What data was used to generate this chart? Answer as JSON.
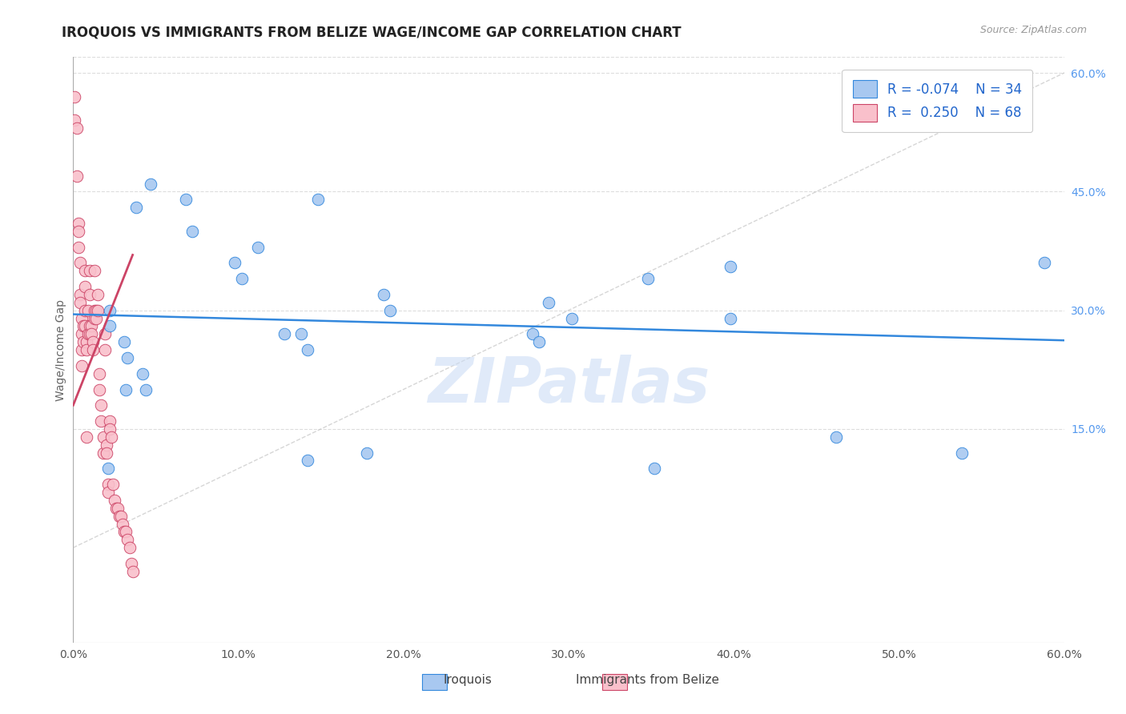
{
  "title": "IROQUOIS VS IMMIGRANTS FROM BELIZE WAGE/INCOME GAP CORRELATION CHART",
  "source": "Source: ZipAtlas.com",
  "ylabel": "Wage/Income Gap",
  "xmin": 0.0,
  "xmax": 0.6,
  "ymin": -0.12,
  "ymax": 0.62,
  "xticks": [
    0.0,
    0.1,
    0.2,
    0.3,
    0.4,
    0.5,
    0.6
  ],
  "xtick_labels": [
    "0.0%",
    "10.0%",
    "20.0%",
    "30.0%",
    "40.0%",
    "50.0%",
    "60.0%"
  ],
  "yticks": [
    0.15,
    0.3,
    0.45,
    0.6
  ],
  "ytick_labels": [
    "15.0%",
    "30.0%",
    "45.0%",
    "60.0%"
  ],
  "blue_color": "#A8C8F0",
  "pink_color": "#F9C0CB",
  "trend_blue_color": "#3388DD",
  "trend_pink_color": "#CC4466",
  "diagonal_color": "#BBBBBB",
  "watermark": "ZIPatlas",
  "blue_x": [
    0.047,
    0.022,
    0.038,
    0.068,
    0.072,
    0.098,
    0.102,
    0.112,
    0.128,
    0.138,
    0.142,
    0.148,
    0.022,
    0.031,
    0.033,
    0.042,
    0.044,
    0.188,
    0.192,
    0.278,
    0.282,
    0.288,
    0.302,
    0.348,
    0.398,
    0.462,
    0.538,
    0.588,
    0.021,
    0.032,
    0.142,
    0.178,
    0.352,
    0.398
  ],
  "blue_y": [
    0.46,
    0.3,
    0.43,
    0.44,
    0.4,
    0.36,
    0.34,
    0.38,
    0.27,
    0.27,
    0.25,
    0.44,
    0.28,
    0.26,
    0.24,
    0.22,
    0.2,
    0.32,
    0.3,
    0.27,
    0.26,
    0.31,
    0.29,
    0.34,
    0.29,
    0.14,
    0.12,
    0.36,
    0.1,
    0.2,
    0.11,
    0.12,
    0.1,
    0.355
  ],
  "pink_x": [
    0.001,
    0.001,
    0.002,
    0.002,
    0.003,
    0.003,
    0.003,
    0.004,
    0.004,
    0.004,
    0.005,
    0.005,
    0.005,
    0.005,
    0.006,
    0.006,
    0.007,
    0.007,
    0.007,
    0.007,
    0.008,
    0.008,
    0.008,
    0.009,
    0.009,
    0.01,
    0.01,
    0.01,
    0.01,
    0.011,
    0.011,
    0.012,
    0.012,
    0.013,
    0.013,
    0.013,
    0.014,
    0.014,
    0.015,
    0.015,
    0.016,
    0.016,
    0.017,
    0.017,
    0.018,
    0.018,
    0.019,
    0.019,
    0.02,
    0.02,
    0.021,
    0.021,
    0.022,
    0.022,
    0.023,
    0.024,
    0.025,
    0.026,
    0.027,
    0.028,
    0.029,
    0.03,
    0.031,
    0.032,
    0.033,
    0.034,
    0.035,
    0.036
  ],
  "pink_y": [
    0.57,
    0.54,
    0.53,
    0.47,
    0.41,
    0.4,
    0.38,
    0.36,
    0.32,
    0.31,
    0.29,
    0.27,
    0.25,
    0.23,
    0.28,
    0.26,
    0.35,
    0.33,
    0.3,
    0.28,
    0.26,
    0.25,
    0.14,
    0.3,
    0.27,
    0.35,
    0.32,
    0.28,
    0.27,
    0.28,
    0.27,
    0.26,
    0.25,
    0.35,
    0.3,
    0.29,
    0.3,
    0.29,
    0.32,
    0.3,
    0.22,
    0.2,
    0.18,
    0.16,
    0.14,
    0.12,
    0.27,
    0.25,
    0.13,
    0.12,
    0.08,
    0.07,
    0.16,
    0.15,
    0.14,
    0.08,
    0.06,
    0.05,
    0.05,
    0.04,
    0.04,
    0.03,
    0.02,
    0.02,
    0.01,
    0.0,
    -0.02,
    -0.03
  ],
  "blue_trend_x": [
    0.0,
    0.6
  ],
  "blue_trend_y": [
    0.295,
    0.262
  ],
  "pink_trend_x": [
    0.0,
    0.036
  ],
  "pink_trend_y": [
    0.18,
    0.37
  ]
}
